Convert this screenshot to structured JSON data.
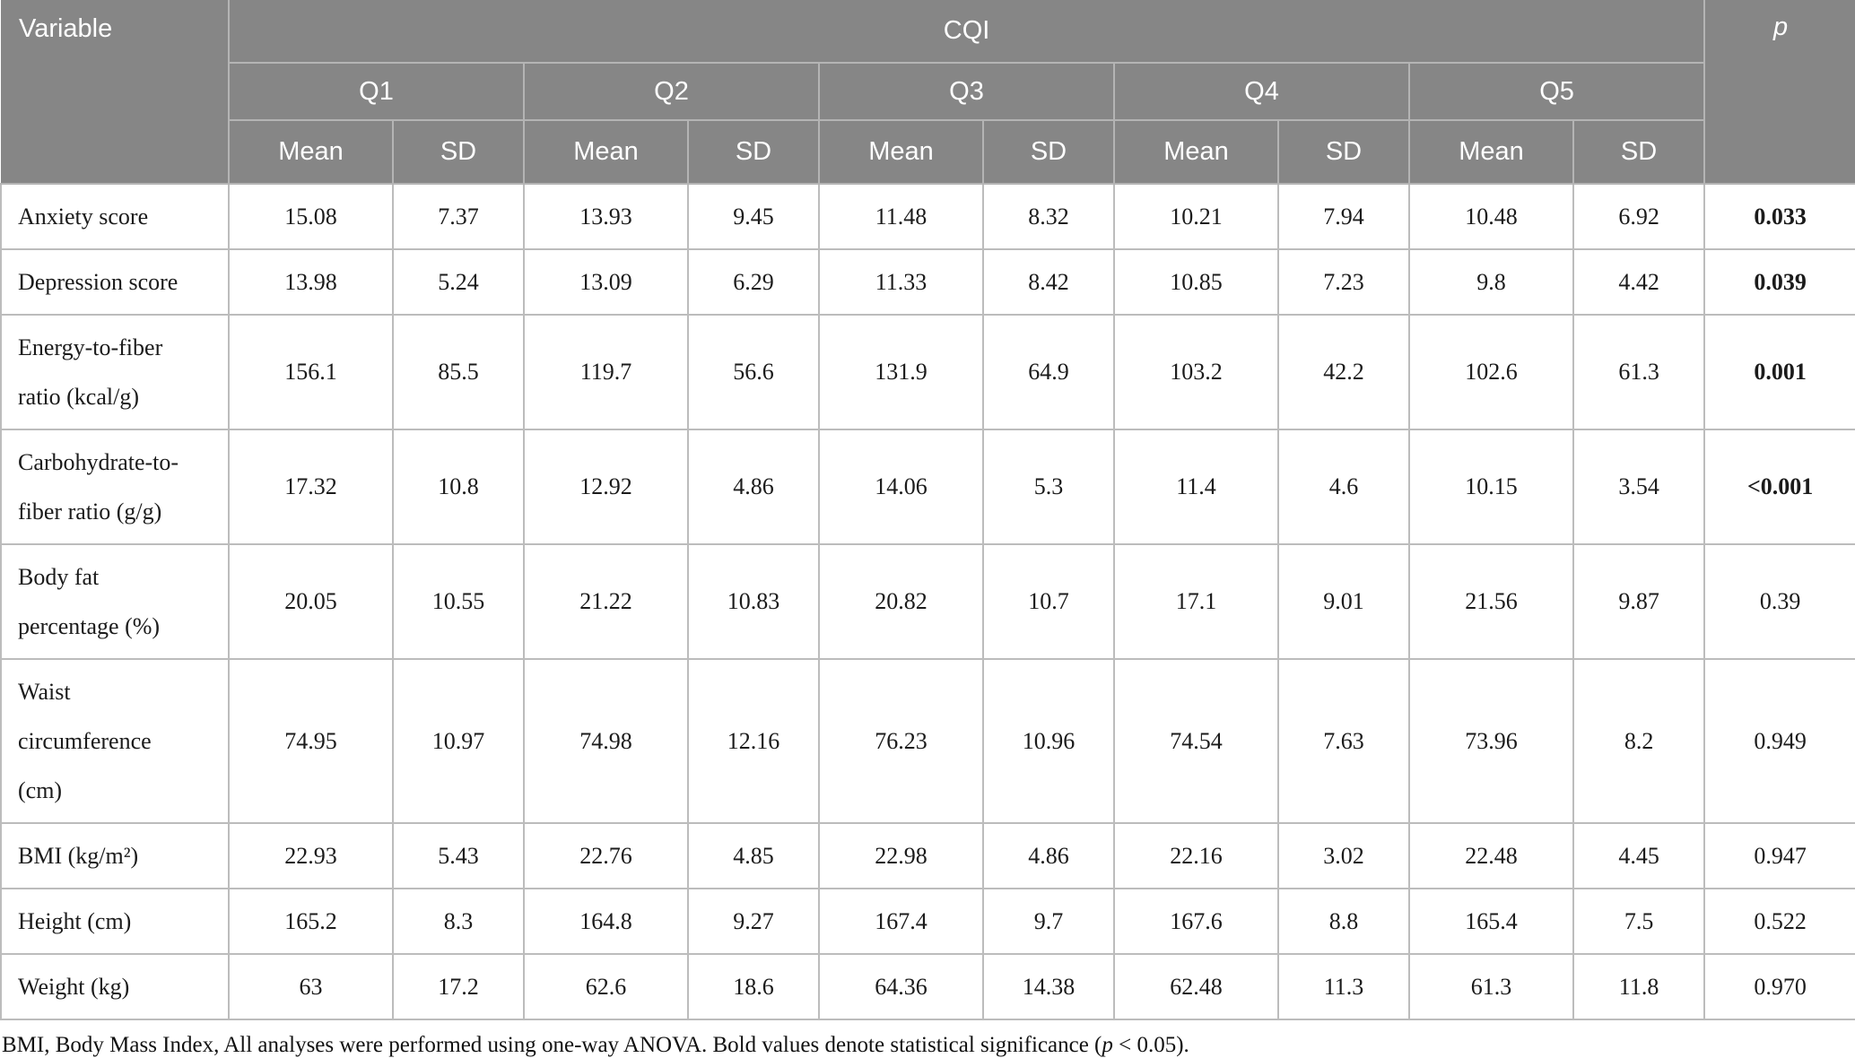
{
  "table": {
    "header": {
      "variable": "Variable",
      "group": "CQI",
      "p": "p"
    },
    "quartiles": [
      "Q1",
      "Q2",
      "Q3",
      "Q4",
      "Q5"
    ],
    "subheaders": [
      "Mean",
      "SD"
    ],
    "rows": [
      {
        "label": "Anxiety score",
        "values": [
          "15.08",
          "7.37",
          "13.93",
          "9.45",
          "11.48",
          "8.32",
          "10.21",
          "7.94",
          "10.48",
          "6.92"
        ],
        "p": "0.033",
        "significant": true
      },
      {
        "label": "Depression score",
        "values": [
          "13.98",
          "5.24",
          "13.09",
          "6.29",
          "11.33",
          "8.42",
          "10.85",
          "7.23",
          "9.8",
          "4.42"
        ],
        "p": "0.039",
        "significant": true
      },
      {
        "label": "Energy-to-fiber\nratio (kcal/g)",
        "values": [
          "156.1",
          "85.5",
          "119.7",
          "56.6",
          "131.9",
          "64.9",
          "103.2",
          "42.2",
          "102.6",
          "61.3"
        ],
        "p": "0.001",
        "significant": true
      },
      {
        "label": "Carbohydrate-to-\nfiber ratio (g/g)",
        "values": [
          "17.32",
          "10.8",
          "12.92",
          "4.86",
          "14.06",
          "5.3",
          "11.4",
          "4.6",
          "10.15",
          "3.54"
        ],
        "p": "<0.001",
        "significant": true
      },
      {
        "label": "Body fat\npercentage (%)",
        "values": [
          "20.05",
          "10.55",
          "21.22",
          "10.83",
          "20.82",
          "10.7",
          "17.1",
          "9.01",
          "21.56",
          "9.87"
        ],
        "p": "0.39",
        "significant": false
      },
      {
        "label": "Waist\ncircumference\n(cm)",
        "values": [
          "74.95",
          "10.97",
          "74.98",
          "12.16",
          "76.23",
          "10.96",
          "74.54",
          "7.63",
          "73.96",
          "8.2"
        ],
        "p": "0.949",
        "significant": false
      },
      {
        "label": "BMI (kg/m²)",
        "values": [
          "22.93",
          "5.43",
          "22.76",
          "4.85",
          "22.98",
          "4.86",
          "22.16",
          "3.02",
          "22.48",
          "4.45"
        ],
        "p": "0.947",
        "significant": false
      },
      {
        "label": "Height (cm)",
        "values": [
          "165.2",
          "8.3",
          "164.8",
          "9.27",
          "167.4",
          "9.7",
          "167.6",
          "8.8",
          "165.4",
          "7.5"
        ],
        "p": "0.522",
        "significant": false
      },
      {
        "label": "Weight (kg)",
        "values": [
          "63",
          "17.2",
          "62.6",
          "18.6",
          "64.36",
          "14.38",
          "62.48",
          "11.3",
          "61.3",
          "11.8"
        ],
        "p": "0.970",
        "significant": false
      }
    ]
  },
  "footnote": {
    "text_before": "BMI, Body Mass Index, All analyses were performed using one-way ANOVA. Bold values denote statistical significance (",
    "p_symbol": "p",
    "text_after": " < 0.05)."
  },
  "colors": {
    "header_background": "#868686",
    "header_text": "#ffffff",
    "header_border": "#b4b4b4",
    "body_border": "#bcbcbc",
    "body_text": "#1b1b1b"
  }
}
